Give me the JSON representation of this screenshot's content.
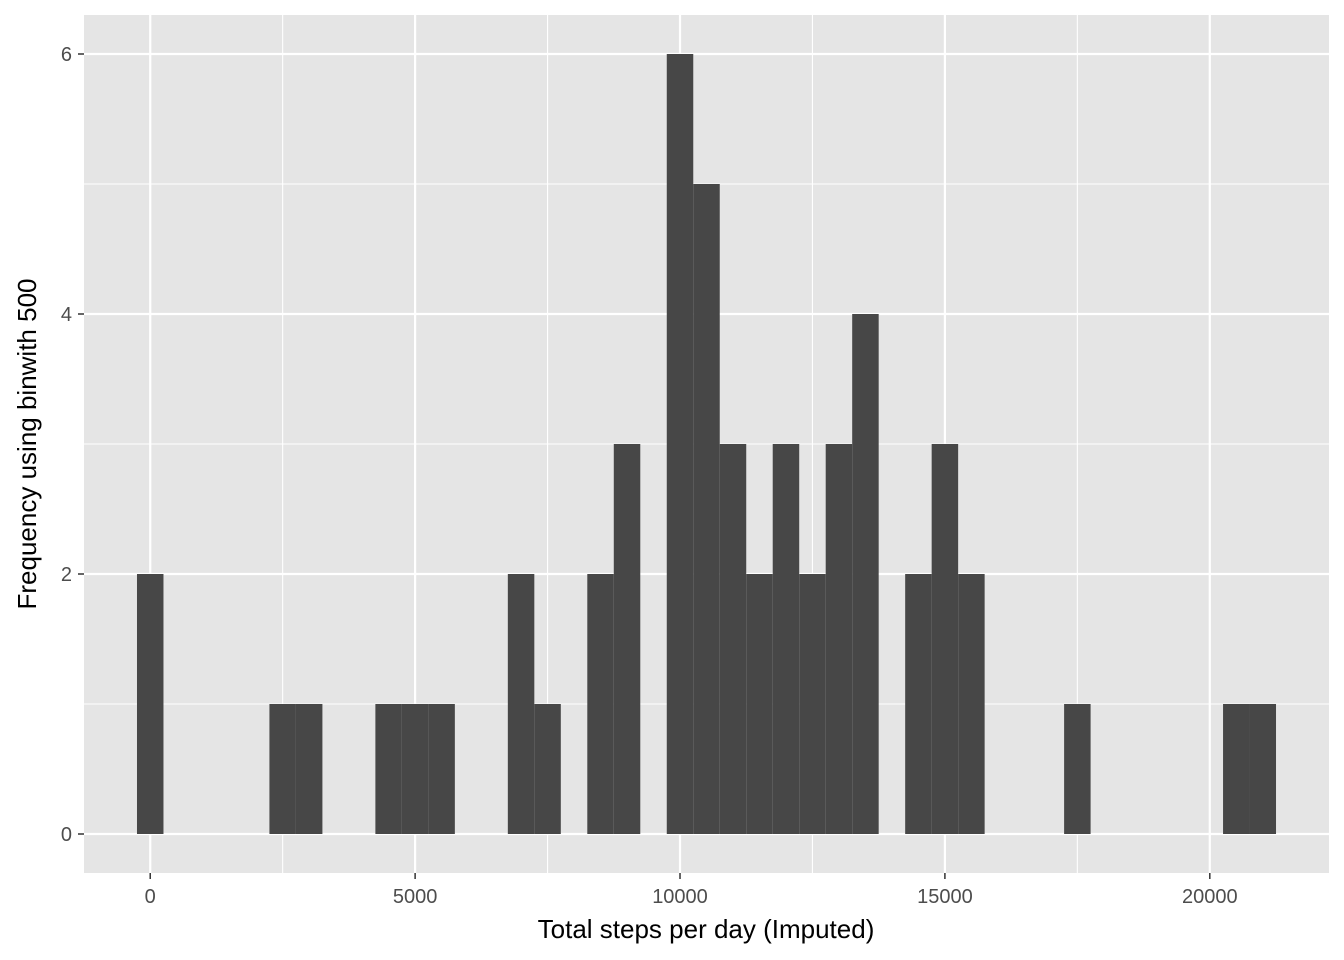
{
  "chart_data": {
    "type": "bar",
    "xlabel": "Total steps per day (Imputed)",
    "ylabel": "Frequency using binwith 500",
    "binwidth": 500,
    "xlim": [
      -1250,
      22250
    ],
    "ylim": [
      -0.3,
      6.3
    ],
    "xticks": [
      0,
      5000,
      10000,
      15000,
      20000
    ],
    "yticks": [
      0,
      2,
      4,
      6
    ],
    "grid": true,
    "colors": {
      "panel": "#e5e5e5",
      "bar": "#474747",
      "grid": "#ffffff"
    },
    "bins": [
      {
        "center": 0,
        "count": 2
      },
      {
        "center": 2500,
        "count": 1
      },
      {
        "center": 3000,
        "count": 1
      },
      {
        "center": 4500,
        "count": 1
      },
      {
        "center": 5000,
        "count": 1
      },
      {
        "center": 5500,
        "count": 1
      },
      {
        "center": 7000,
        "count": 2
      },
      {
        "center": 7500,
        "count": 1
      },
      {
        "center": 8500,
        "count": 2
      },
      {
        "center": 9000,
        "count": 3
      },
      {
        "center": 10000,
        "count": 6
      },
      {
        "center": 10500,
        "count": 5
      },
      {
        "center": 11000,
        "count": 3
      },
      {
        "center": 11500,
        "count": 2
      },
      {
        "center": 12000,
        "count": 3
      },
      {
        "center": 12500,
        "count": 2
      },
      {
        "center": 13000,
        "count": 3
      },
      {
        "center": 13500,
        "count": 4
      },
      {
        "center": 14500,
        "count": 2
      },
      {
        "center": 15000,
        "count": 3
      },
      {
        "center": 15500,
        "count": 2
      },
      {
        "center": 17500,
        "count": 1
      },
      {
        "center": 20500,
        "count": 1
      },
      {
        "center": 21000,
        "count": 1
      }
    ]
  }
}
